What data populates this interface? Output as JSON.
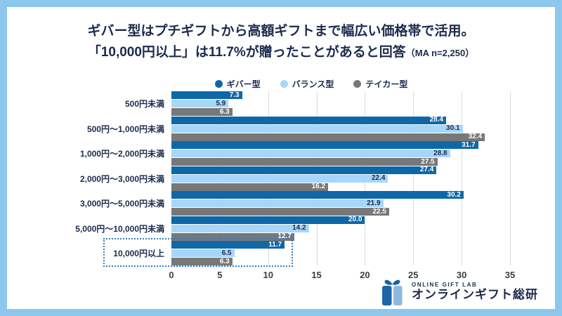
{
  "frame": {
    "border_color": "#8dc7ed",
    "background": "#ffffff"
  },
  "title": {
    "line1": "ギバー型はプチギフトから高額ギフトまで幅広い価格帯で活用。",
    "line2": "「10,000円以上」は11.7%が贈ったことがあると回答",
    "note": "（MA n=2,250）"
  },
  "chart_data": {
    "type": "bar",
    "orientation": "horizontal",
    "categories": [
      "500円未満",
      "500円〜1,000円未満",
      "1,000円〜2,000円未満",
      "2,000円〜3,000円未満",
      "3,000円〜5,000円未満",
      "5,000円〜10,000円未満",
      "10,000円以上"
    ],
    "series": [
      {
        "name": "ギバー型",
        "color": "#0e68a8",
        "label_color": "#ffffff",
        "values": [
          7.3,
          28.4,
          31.7,
          27.4,
          30.2,
          20.0,
          11.7
        ]
      },
      {
        "name": "バランス型",
        "color": "#a8d6f8",
        "label_color": "#1b2a4c",
        "values": [
          5.9,
          30.1,
          28.8,
          22.4,
          21.9,
          14.2,
          6.5
        ]
      },
      {
        "name": "テイカー型",
        "color": "#787878",
        "label_color": "#ffffff",
        "values": [
          6.3,
          32.4,
          27.5,
          16.2,
          22.5,
          12.7,
          6.3
        ]
      }
    ],
    "xlim": [
      0,
      35
    ],
    "xticks": [
      0,
      5,
      10,
      15,
      20,
      25,
      30,
      35
    ],
    "grid": "vertical",
    "legend_position": "top",
    "highlight_category": "10,000円以上",
    "highlight_style": "dotted-box"
  },
  "logo": {
    "icon": "gift-box-icon",
    "brand_small": "ONLINE GIFT LAB",
    "brand_large": "オンラインギフト総研",
    "colors": {
      "dark": "#1d64a9",
      "light": "#8fb9dd"
    }
  }
}
